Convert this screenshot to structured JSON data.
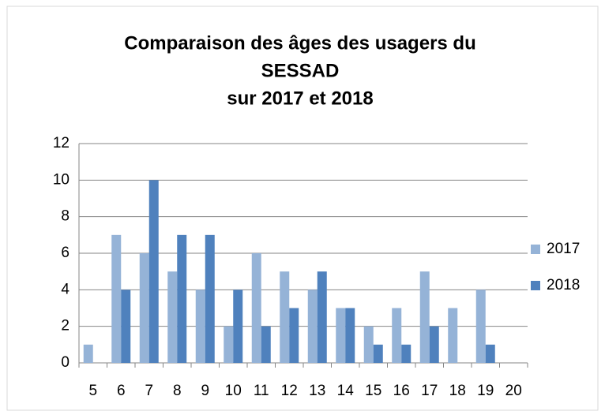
{
  "chart_data": {
    "type": "bar",
    "title": [
      "Comparaison des âges des usagers du",
      "SESSAD",
      "sur 2017 et 2018"
    ],
    "categories": [
      "5",
      "6",
      "7",
      "8",
      "9",
      "10",
      "11",
      "12",
      "13",
      "14",
      "15",
      "16",
      "17",
      "18",
      "19",
      "20"
    ],
    "series": [
      {
        "name": "2017",
        "color": "#95b3d7",
        "values": [
          1,
          7,
          6,
          5,
          4,
          2,
          6,
          5,
          4,
          3,
          2,
          3,
          5,
          3,
          4,
          0
        ]
      },
      {
        "name": "2018",
        "color": "#4f81bd",
        "values": [
          0,
          4,
          10,
          7,
          7,
          4,
          2,
          3,
          5,
          3,
          1,
          1,
          2,
          0,
          1,
          0
        ]
      }
    ],
    "ylim": [
      0,
      12
    ],
    "yticks": [
      0,
      2,
      4,
      6,
      8,
      10,
      12
    ],
    "grid": true,
    "legend": "right"
  }
}
